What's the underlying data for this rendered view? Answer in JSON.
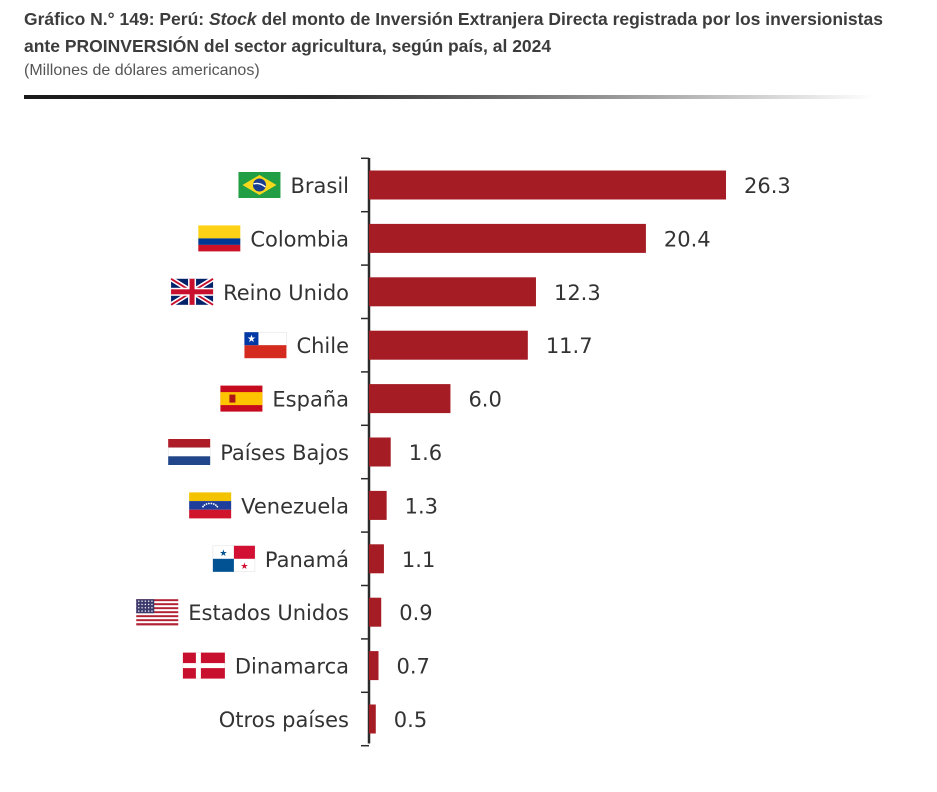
{
  "title": {
    "prefix": "Gráfico N.° 149: Perú: ",
    "italic": "Stock",
    "suffix": " del monto de Inversión Extranjera Directa registrada por los inversionistas ante PROINVERSIÓN del sector agricultura, según país, al 2024"
  },
  "subtitle": "(Millones de dólares americanos)",
  "colors": {
    "bar": "#a51c24",
    "axis": "#2b2b2b",
    "text": "#333333"
  },
  "chart_data": {
    "type": "bar",
    "orientation": "horizontal",
    "categories": [
      "Brasil",
      "Colombia",
      "Reino Unido",
      "Chile",
      "España",
      "Países Bajos",
      "Venezuela",
      "Panamá",
      "Estados Unidos",
      "Dinamarca",
      "Otros países"
    ],
    "values": [
      26.3,
      20.4,
      12.3,
      11.7,
      6.0,
      1.6,
      1.3,
      1.1,
      0.9,
      0.7,
      0.5
    ],
    "value_labels": [
      "26.3",
      "20.4",
      "12.3",
      "11.7",
      "6.0",
      "1.6",
      "1.3",
      "1.1",
      "0.9",
      "0.7",
      "0.5"
    ],
    "flags": [
      "brazil-flag-icon",
      "colombia-flag-icon",
      "uk-flag-icon",
      "chile-flag-icon",
      "spain-flag-icon",
      "netherlands-flag-icon",
      "venezuela-flag-icon",
      "panama-flag-icon",
      "usa-flag-icon",
      "denmark-flag-icon",
      ""
    ],
    "xlim": [
      0,
      26.3
    ],
    "grid": false,
    "legend": "none"
  }
}
